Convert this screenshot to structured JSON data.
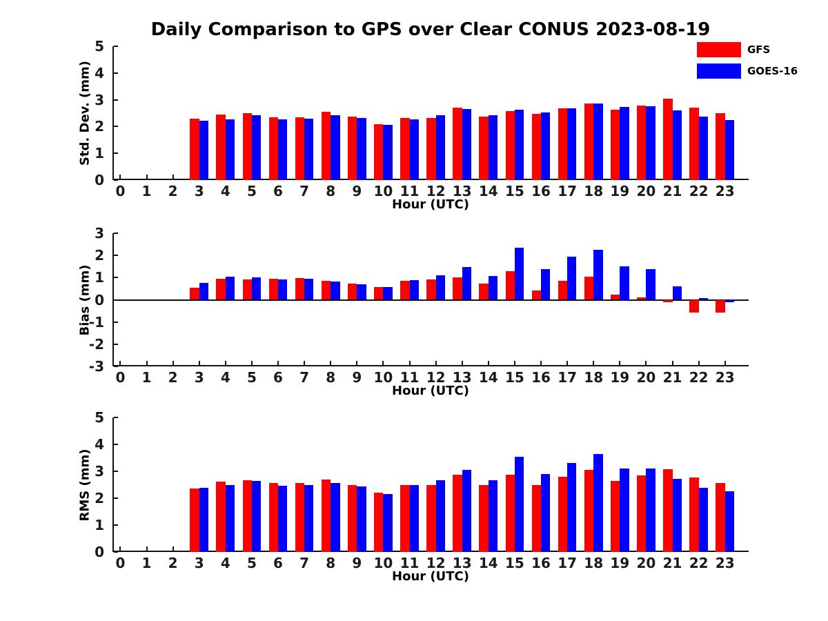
{
  "title": "Daily Comparison to GPS over Clear CONUS 2023-08-19",
  "colors": {
    "gfs": "#ff0000",
    "goes16": "#0000ff",
    "axis": "#111111"
  },
  "legend": {
    "position": "top-right-outside",
    "items": [
      {
        "label": "GFS",
        "color": "#ff0000"
      },
      {
        "label": "GOES-16",
        "color": "#0000ff"
      }
    ]
  },
  "x_ticks": [
    0,
    1,
    2,
    3,
    4,
    5,
    6,
    7,
    8,
    9,
    10,
    11,
    12,
    13,
    14,
    15,
    16,
    17,
    18,
    19,
    20,
    21,
    22,
    23
  ],
  "chart_data": [
    {
      "type": "bar",
      "panel": "std-dev",
      "xlabel": "Hour (UTC)",
      "ylabel": "Std. Dev. (mm)",
      "ylim": [
        0,
        5
      ],
      "yticks": [
        0,
        1,
        2,
        3,
        4,
        5
      ],
      "grid": false,
      "zero_line": false,
      "hours": [
        3,
        4,
        5,
        6,
        7,
        8,
        9,
        10,
        11,
        12,
        13,
        14,
        15,
        16,
        17,
        18,
        19,
        20,
        21,
        22,
        23
      ],
      "series": [
        {
          "name": "GFS",
          "color": "#ff0000",
          "values": [
            2.3,
            2.45,
            2.5,
            2.35,
            2.34,
            2.54,
            2.38,
            2.1,
            2.33,
            2.31,
            2.7,
            2.38,
            2.59,
            2.47,
            2.68,
            2.85,
            2.64,
            2.79,
            3.03,
            2.7,
            2.5
          ]
        },
        {
          "name": "GOES-16",
          "color": "#0000ff",
          "values": [
            2.22,
            2.28,
            2.42,
            2.28,
            2.29,
            2.42,
            2.33,
            2.07,
            2.28,
            2.42,
            2.66,
            2.42,
            2.62,
            2.52,
            2.68,
            2.86,
            2.73,
            2.76,
            2.61,
            2.37,
            2.24
          ]
        }
      ]
    },
    {
      "type": "bar",
      "panel": "bias",
      "xlabel": "Hour (UTC)",
      "ylabel": "Bias (mm)",
      "ylim": [
        -3,
        3
      ],
      "yticks": [
        -3,
        -2,
        -1,
        0,
        1,
        2,
        3
      ],
      "grid": false,
      "zero_line": true,
      "hours": [
        3,
        4,
        5,
        6,
        7,
        8,
        9,
        10,
        11,
        12,
        13,
        14,
        15,
        16,
        17,
        18,
        19,
        20,
        21,
        22,
        23
      ],
      "series": [
        {
          "name": "GFS",
          "color": "#ff0000",
          "values": [
            0.55,
            0.95,
            0.92,
            0.95,
            0.98,
            0.87,
            0.74,
            0.59,
            0.84,
            0.92,
            1.0,
            0.72,
            1.3,
            0.41,
            0.84,
            1.05,
            0.22,
            0.1,
            -0.1,
            -0.58,
            -0.58
          ]
        },
        {
          "name": "GOES-16",
          "color": "#0000ff",
          "values": [
            0.75,
            1.05,
            1.02,
            0.92,
            0.95,
            0.83,
            0.71,
            0.59,
            0.9,
            1.1,
            1.48,
            1.08,
            2.35,
            1.38,
            1.93,
            2.24,
            1.5,
            1.38,
            0.62,
            0.08,
            -0.1
          ]
        }
      ]
    },
    {
      "type": "bar",
      "panel": "rms",
      "xlabel": "Hour (UTC)",
      "ylabel": "RMS (mm)",
      "ylim": [
        0,
        5
      ],
      "yticks": [
        0,
        1,
        2,
        3,
        4,
        5
      ],
      "grid": false,
      "zero_line": false,
      "hours": [
        3,
        4,
        5,
        6,
        7,
        8,
        9,
        10,
        11,
        12,
        13,
        14,
        15,
        16,
        17,
        18,
        19,
        20,
        21,
        22,
        23
      ],
      "series": [
        {
          "name": "GFS",
          "color": "#ff0000",
          "values": [
            2.37,
            2.61,
            2.67,
            2.56,
            2.57,
            2.69,
            2.5,
            2.21,
            2.48,
            2.5,
            2.86,
            2.5,
            2.88,
            2.5,
            2.79,
            3.06,
            2.64,
            2.84,
            3.07,
            2.77,
            2.56
          ]
        },
        {
          "name": "GOES-16",
          "color": "#0000ff",
          "values": [
            2.38,
            2.5,
            2.64,
            2.46,
            2.49,
            2.56,
            2.44,
            2.15,
            2.5,
            2.66,
            3.06,
            2.66,
            3.55,
            2.9,
            3.32,
            3.64,
            3.1,
            3.11,
            2.73,
            2.38,
            2.25
          ]
        }
      ]
    }
  ]
}
